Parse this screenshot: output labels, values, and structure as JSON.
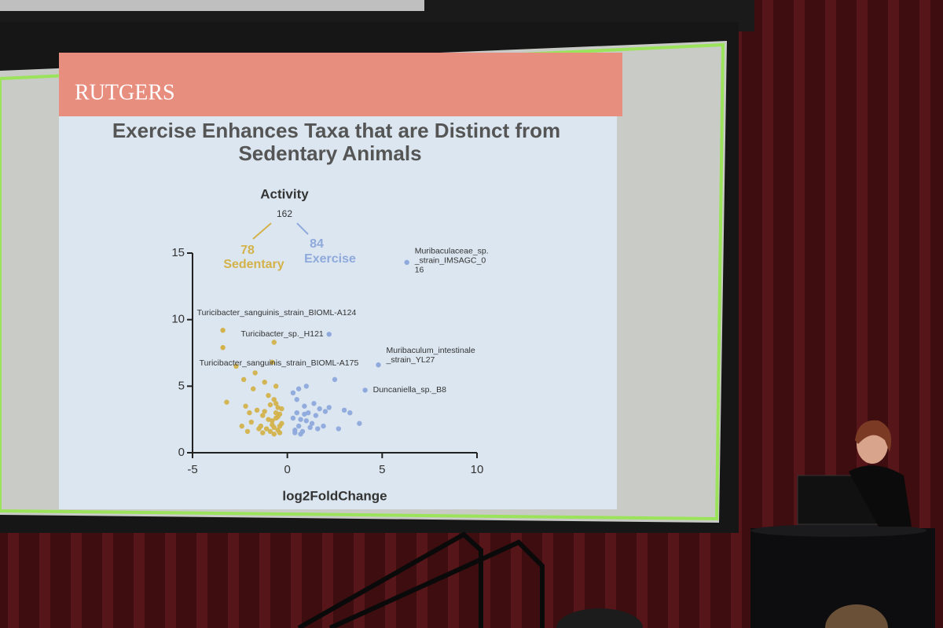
{
  "logo": "RUTGERS",
  "chart_data": {
    "type": "scatter",
    "title": [
      "Exercise Enhances Taxa that are Distinct from",
      "Sedentary Animals"
    ],
    "tree": {
      "root": "Activity",
      "total": 162
    },
    "x_label": "log2FoldChange",
    "xlim": [
      -5,
      10
    ],
    "xticks": [
      -5,
      0,
      5,
      10
    ],
    "ylim": [
      0,
      15
    ],
    "yticks": [
      0,
      5,
      10,
      15
    ],
    "series": [
      {
        "name": "Sedentary",
        "count": 78,
        "color": "#d4b24a",
        "x": [
          -2.7,
          -2.3,
          -3.2,
          -1.7,
          -1.2,
          -0.8,
          -0.6,
          -2.2,
          -2.4,
          -2.0,
          -1.9,
          -1.6,
          -1.3,
          -1.0,
          -0.9,
          -0.7,
          -0.5,
          -0.4,
          -1.1,
          -0.8,
          -0.6,
          -0.5,
          -0.3,
          -1.4,
          -1.2,
          -0.9,
          -0.7,
          -0.6,
          -0.4,
          -1.0,
          -0.8,
          -0.5,
          -0.3,
          -1.5,
          -1.3,
          -0.7,
          -0.6,
          -0.4,
          -2.1,
          -1.8,
          -0.7
        ],
        "y": [
          6.5,
          5.5,
          3.8,
          6.0,
          5.3,
          6.8,
          5.0,
          3.5,
          2.0,
          3.0,
          2.3,
          3.2,
          2.8,
          2.5,
          3.6,
          4.0,
          3.4,
          2.9,
          1.8,
          2.1,
          2.6,
          1.7,
          2.2,
          2.0,
          3.1,
          1.6,
          1.9,
          3.0,
          1.5,
          4.3,
          2.4,
          2.7,
          3.3,
          1.8,
          1.5,
          1.4,
          3.7,
          2.0,
          1.6,
          4.8,
          8.3
        ]
      },
      {
        "name": "Exercise",
        "count": 84,
        "color": "#8fa9dc",
        "x": [
          1.0,
          2.5,
          3.0,
          3.8,
          2.7,
          3.3,
          2.2,
          0.3,
          0.5,
          0.7,
          0.9,
          1.1,
          1.3,
          1.5,
          1.7,
          1.9,
          0.4,
          0.6,
          0.8,
          1.2,
          1.4,
          0.5,
          0.7,
          1.0,
          0.3,
          0.6,
          0.9,
          1.6,
          2.0,
          0.4
        ],
        "y": [
          5.0,
          5.5,
          3.2,
          2.2,
          1.8,
          3.0,
          3.4,
          4.5,
          4.0,
          2.5,
          3.5,
          3.0,
          2.2,
          2.8,
          3.3,
          2.0,
          1.7,
          2.0,
          1.6,
          1.9,
          3.7,
          3.0,
          1.4,
          2.4,
          2.6,
          4.8,
          2.9,
          1.8,
          3.1,
          1.5
        ]
      }
    ],
    "annotations": [
      {
        "lines": [
          "Muribaculaceae_sp.",
          "_strain_IMSAGC_0",
          "16"
        ],
        "x": 6.3,
        "y": 14.3,
        "color": "#8fa9dc"
      },
      {
        "lines": [
          "Turicibacter_sanguinis_strain_BIOML-A124"
        ],
        "x": -3.4,
        "y": 9.2,
        "color": "#d4b24a"
      },
      {
        "lines": [
          "Turicibacter_sp._H121"
        ],
        "x": 2.2,
        "y": 8.9,
        "color": "#8fa9dc"
      },
      {
        "lines": [
          "Turicibacter_sanguinis_strain_BIOML-A175"
        ],
        "x": -3.4,
        "y": 7.9,
        "color": "#d4b24a"
      },
      {
        "lines": [
          "Muribaculum_intestinale",
          "_strain_YL27"
        ],
        "x": 4.8,
        "y": 6.6,
        "color": "#8fa9dc"
      },
      {
        "lines": [
          "Duncaniella_sp._B8"
        ],
        "x": 4.1,
        "y": 4.7,
        "color": "#8fa9dc"
      }
    ]
  }
}
